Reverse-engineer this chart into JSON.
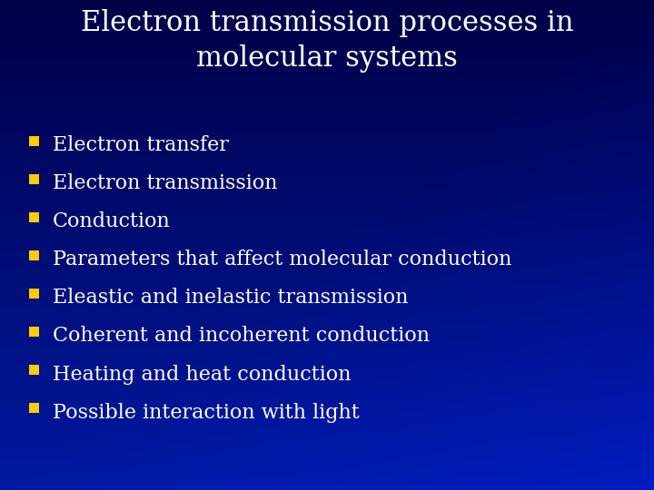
{
  "title": "Electron transmission processes in\nmolecular systems",
  "bullet_items": [
    "Electron transfer",
    "Electron transmission",
    "Conduction",
    "Parameters that affect molecular conduction",
    "Eleastic and inelastic transmission",
    "Coherent and incoherent conduction",
    "Heating and heat conduction",
    "Possible interaction with light"
  ],
  "bg_top": "#00007a",
  "bg_bottom": "#0033cc",
  "title_color": "#ffffff",
  "bullet_text_color": "#ffffff",
  "bullet_marker_color": "#ffcc00",
  "title_fontsize": 22,
  "bullet_fontsize": 16,
  "title_font": "DejaVu Serif",
  "bullet_font": "DejaVu Serif"
}
